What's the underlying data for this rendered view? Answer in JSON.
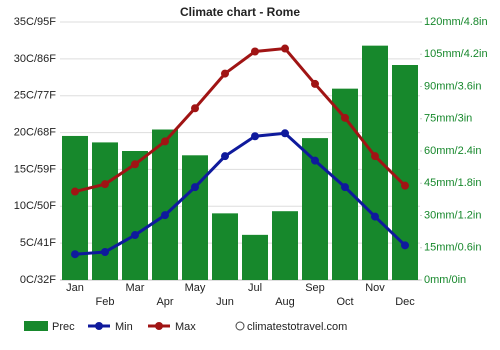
{
  "chart_data": {
    "type": "bar-line",
    "title": "Climate chart - Rome",
    "categories": [
      "Jan",
      "Feb",
      "Mar",
      "Apr",
      "May",
      "Jun",
      "Jul",
      "Aug",
      "Sep",
      "Oct",
      "Nov",
      "Dec"
    ],
    "series": [
      {
        "name": "Prec",
        "color": "#17882c",
        "type": "bar",
        "axis": "y2",
        "values": [
          67,
          64,
          60,
          70,
          58,
          31,
          21,
          32,
          66,
          89,
          109,
          100
        ]
      },
      {
        "name": "Min",
        "color": "#0f1a9c",
        "type": "line",
        "values": [
          3.5,
          3.8,
          6.1,
          8.8,
          12.6,
          16.8,
          19.5,
          19.9,
          16.2,
          12.6,
          8.6,
          4.7
        ]
      },
      {
        "name": "Max",
        "color": "#a01414",
        "type": "line",
        "values": [
          12,
          13,
          15.7,
          18.8,
          23.3,
          28,
          31,
          31.4,
          26.6,
          22,
          16.8,
          12.8
        ]
      }
    ],
    "ylim": [
      0,
      35
    ],
    "yticks": [
      {
        "value": 0,
        "label": "0C/32F"
      },
      {
        "value": 5,
        "label": "5C/41F"
      },
      {
        "value": 10,
        "label": "10C/50F"
      },
      {
        "value": 15,
        "label": "15C/59F"
      },
      {
        "value": 20,
        "label": "20C/68F"
      },
      {
        "value": 25,
        "label": "25C/77F"
      },
      {
        "value": 30,
        "label": "30C/86F"
      },
      {
        "value": 35,
        "label": "35C/95F"
      }
    ],
    "y2lim": [
      0,
      120
    ],
    "y2ticks": [
      {
        "value": 0,
        "label": "0mm/0in"
      },
      {
        "value": 15,
        "label": "15mm/0.6in"
      },
      {
        "value": 30,
        "label": "30mm/1.2in"
      },
      {
        "value": 45,
        "label": "45mm/1.8in"
      },
      {
        "value": 60,
        "label": "60mm/2.4in"
      },
      {
        "value": 75,
        "label": "75mm/3in"
      },
      {
        "value": 90,
        "label": "90mm/3.6in"
      },
      {
        "value": 105,
        "label": "105mm/4.2in"
      },
      {
        "value": 120,
        "label": "120mm/4.8in"
      }
    ],
    "grid": true,
    "source": "climatestotravel.com"
  }
}
